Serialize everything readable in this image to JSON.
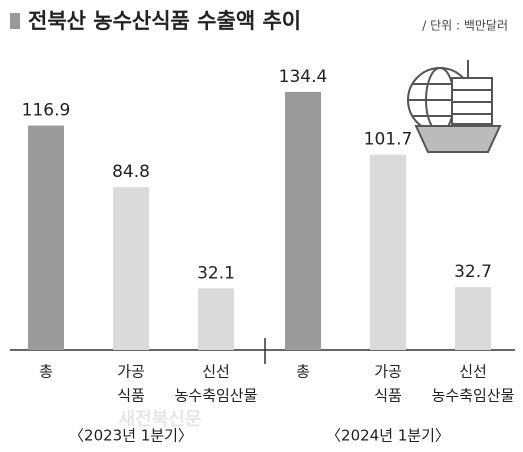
{
  "chart_data": {
    "type": "grouped-bar",
    "title": "전북산 농수산식품 수출액 추이",
    "unit": "/ 단위 : 백만달러",
    "watermark": "새전북신문",
    "categories": [
      [
        "총"
      ],
      [
        "가공",
        "식품"
      ],
      [
        "신선",
        "농수축임산물"
      ]
    ],
    "groups": [
      {
        "name": "〈2023년 1분기〉",
        "values": [
          116.9,
          84.8,
          32.1
        ]
      },
      {
        "name": "〈2024년 1분기〉",
        "values": [
          134.4,
          101.7,
          32.7
        ]
      }
    ],
    "colors": [
      "#9b9b9b",
      "#dadada",
      "#dadada"
    ]
  }
}
